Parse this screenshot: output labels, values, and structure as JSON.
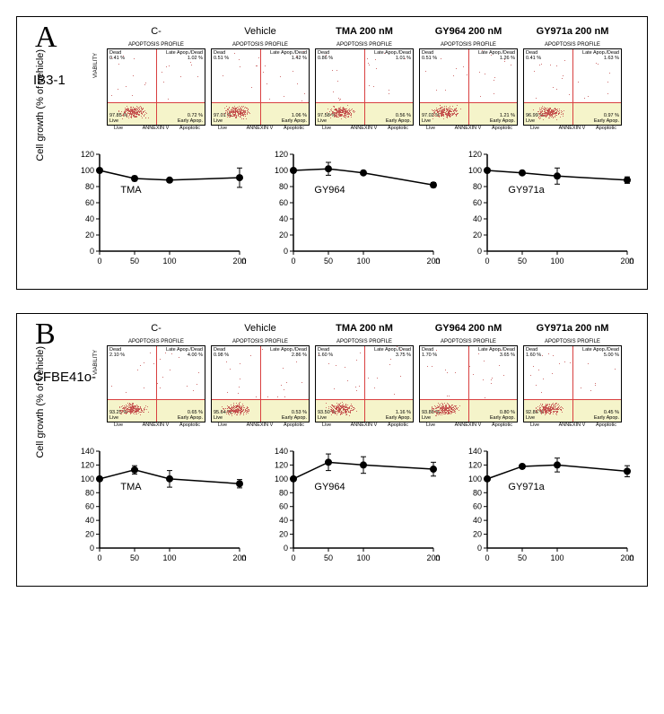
{
  "colors": {
    "panel_border": "#000000",
    "bg": "#ffffff",
    "text": "#000000",
    "facs_crosshair": "#d94040",
    "facs_region_fill": "#f2f0b8",
    "scatter_dot": "#c04545",
    "chart_line": "#000000",
    "chart_marker_fill": "#000000"
  },
  "panels": [
    {
      "letter": "A",
      "cell_line": "IB3-1",
      "facs": {
        "profile_title": "APOPTOSIS PROFILE",
        "axis_y_title": "VIABILITY",
        "axis_x_segments": [
          "Live",
          "ANNEXIN V",
          "Apoptotic"
        ],
        "plots": [
          {
            "header": "C-",
            "dead": "0.41 %",
            "late_label": "Late Apop./Dead",
            "late": "1.02 %",
            "live": "97.85 %",
            "live_label": "Live",
            "early": "0.72 %",
            "early_label": "Early Apop."
          },
          {
            "header": "Vehicle",
            "dead": "0.51 %",
            "late_label": "Late Apop./Dead",
            "late": "1.42 %",
            "live": "97.01 %",
            "live_label": "Live",
            "early": "1.06 %",
            "early_label": "Early Apop."
          },
          {
            "header": "TMA 200 nM",
            "dead": "0.86 %",
            "late_label": "Late Apop./Dead",
            "late": "1.01 %",
            "live": "97.58 %",
            "live_label": "Live",
            "early": "0.56 %",
            "early_label": "Early Apop."
          },
          {
            "header": "GY964 200 nM",
            "dead": "0.51 %",
            "late_label": "Late Apop./Dead",
            "late": "1.26 %",
            "live": "97.02 %",
            "live_label": "Live",
            "early": "1.21 %",
            "early_label": "Early Apop."
          },
          {
            "header": "GY971a 200 nM",
            "dead": "0.41 %",
            "late_label": "Late Apop./Dead",
            "late": "1.63 %",
            "live": "96.99 %",
            "live_label": "Live",
            "early": "0.97 %",
            "early_label": "Early Apop."
          }
        ]
      },
      "charts": {
        "ylabel": "Cell growth (% of vehicle)",
        "xunit": "nM",
        "ylim": [
          0,
          120
        ],
        "ytick_step": 20,
        "xlim": [
          0,
          200
        ],
        "xticks": [
          0,
          50,
          100,
          200
        ],
        "marker": "circle",
        "marker_size": 4,
        "line_color": "#000000",
        "series": [
          {
            "label": "TMA",
            "points": [
              {
                "x": 0,
                "y": 100,
                "err": 2
              },
              {
                "x": 50,
                "y": 90,
                "err": 3
              },
              {
                "x": 100,
                "y": 88,
                "err": 2
              },
              {
                "x": 200,
                "y": 91,
                "err": 12
              }
            ]
          },
          {
            "label": "GY964",
            "points": [
              {
                "x": 0,
                "y": 100,
                "err": 2
              },
              {
                "x": 50,
                "y": 102,
                "err": 8
              },
              {
                "x": 100,
                "y": 97,
                "err": 2
              },
              {
                "x": 200,
                "y": 82,
                "err": 3
              }
            ]
          },
          {
            "label": "GY971a",
            "points": [
              {
                "x": 0,
                "y": 100,
                "err": 2
              },
              {
                "x": 50,
                "y": 97,
                "err": 2
              },
              {
                "x": 100,
                "y": 93,
                "err": 10
              },
              {
                "x": 200,
                "y": 88,
                "err": 4
              }
            ]
          }
        ]
      }
    },
    {
      "letter": "B",
      "cell_line": "CFBE41o-",
      "facs": {
        "profile_title": "APOPTOSIS PROFILE",
        "axis_y_title": "VIABILITY",
        "axis_x_segments": [
          "Live",
          "ANNEXIN V",
          "Apoptotic"
        ],
        "plots": [
          {
            "header": "C-",
            "dead": "2.10 %",
            "late_label": "Late Apop./Dead",
            "late": "4.00 %",
            "live": "93.25 %",
            "live_label": "Live",
            "early": "0.65 %",
            "early_label": "Early Apop."
          },
          {
            "header": "Vehicle",
            "dead": "0.98 %",
            "late_label": "Late Apop./Dead",
            "late": "2.86 %",
            "live": "95.64 %",
            "live_label": "Live",
            "early": "0.53 %",
            "early_label": "Early Apop."
          },
          {
            "header": "TMA 200 nM",
            "dead": "1.60 %",
            "late_label": "Late Apop./Dead",
            "late": "3.75 %",
            "live": "93.50 %",
            "live_label": "Live",
            "early": "1.16 %",
            "early_label": "Early Apop."
          },
          {
            "header": "GY964 200 nM",
            "dead": "1.70 %",
            "late_label": "Late Apop./Dead",
            "late": "3.65 %",
            "live": "93.86 %",
            "live_label": "Live",
            "early": "0.80 %",
            "early_label": "Early Apop."
          },
          {
            "header": "GY971a 200 nM",
            "dead": "1.60 %",
            "late_label": "Late Apop./Dead",
            "late": "5.00 %",
            "live": "92.86 %",
            "live_label": "Live",
            "early": "0.45 %",
            "early_label": "Early Apop."
          }
        ]
      },
      "charts": {
        "ylabel": "Cell growth (% of vehicle)",
        "xunit": "nM",
        "ylim": [
          0,
          140
        ],
        "ytick_step": 20,
        "xlim": [
          0,
          200
        ],
        "xticks": [
          0,
          50,
          100,
          200
        ],
        "marker": "circle",
        "marker_size": 4,
        "line_color": "#000000",
        "series": [
          {
            "label": "TMA",
            "points": [
              {
                "x": 0,
                "y": 100,
                "err": 3
              },
              {
                "x": 50,
                "y": 113,
                "err": 6
              },
              {
                "x": 100,
                "y": 100,
                "err": 12
              },
              {
                "x": 200,
                "y": 93,
                "err": 6
              }
            ]
          },
          {
            "label": "GY964",
            "points": [
              {
                "x": 0,
                "y": 100,
                "err": 3
              },
              {
                "x": 50,
                "y": 124,
                "err": 12
              },
              {
                "x": 100,
                "y": 120,
                "err": 12
              },
              {
                "x": 200,
                "y": 114,
                "err": 10
              }
            ]
          },
          {
            "label": "GY971a",
            "points": [
              {
                "x": 0,
                "y": 100,
                "err": 3
              },
              {
                "x": 50,
                "y": 118,
                "err": 3
              },
              {
                "x": 100,
                "y": 120,
                "err": 10
              },
              {
                "x": 200,
                "y": 111,
                "err": 8
              }
            ]
          }
        ]
      }
    }
  ]
}
